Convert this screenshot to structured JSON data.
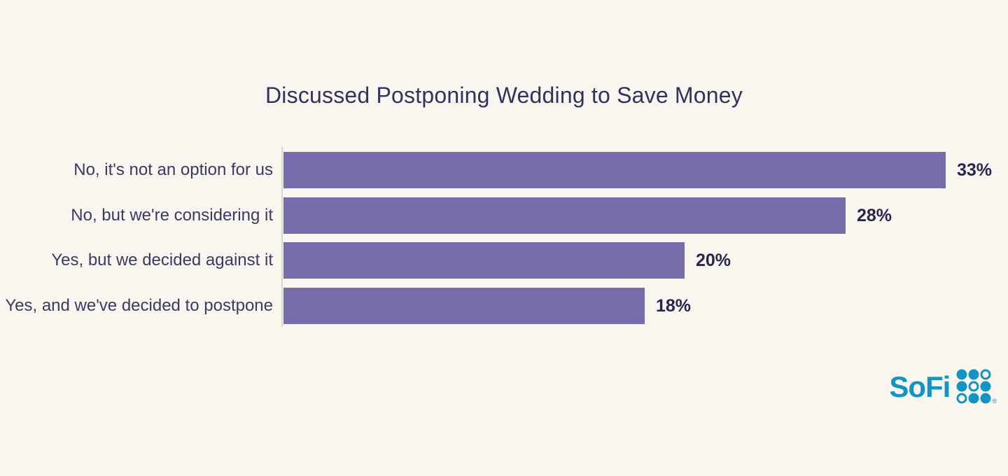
{
  "title": "Discussed Postponing Wedding to Save Money",
  "chart_data": {
    "type": "bar",
    "orientation": "horizontal",
    "title": "Discussed Postponing Wedding to Save Money",
    "categories": [
      "No, it's not an option for us",
      "No, but we're considering it",
      "Yes, but we decided against it",
      "Yes, and we've decided to postpone"
    ],
    "values": [
      33,
      28,
      20,
      18
    ],
    "value_labels": [
      "33%",
      "28%",
      "20%",
      "18%"
    ],
    "value_suffix": "%",
    "xlabel": "",
    "ylabel": "",
    "xlim": [
      0,
      33
    ],
    "grid": false,
    "legend": "none",
    "value_label_position": "end-of-bar",
    "bar_color": "#756ca9"
  },
  "colors": {
    "background": "#f8f6ef",
    "bar": "#756ca9",
    "title_text": "#35315d",
    "category_text": "#3d3963",
    "value_text": "#2a2550",
    "axis_line": "#dbd8d0",
    "sofi_teal": "#1295c2"
  },
  "logo": {
    "brand": "SoFi",
    "registered_mark": "®",
    "dot_grid_pattern": [
      [
        "filled",
        "filled",
        "outline"
      ],
      [
        "filled",
        "outline",
        "filled"
      ],
      [
        "outline",
        "filled",
        "filled"
      ]
    ]
  }
}
